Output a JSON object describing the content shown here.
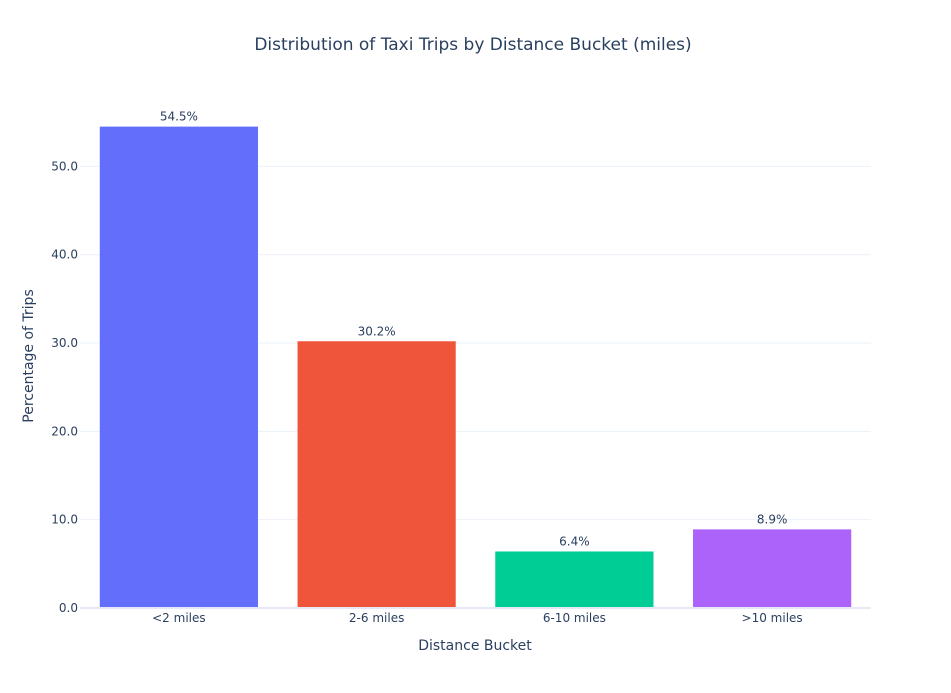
{
  "chart_data": {
    "type": "bar",
    "title": "Distribution of Taxi Trips by Distance Bucket (miles)",
    "xlabel": "Distance Bucket",
    "ylabel": "Percentage of Trips",
    "categories": [
      "<2 miles",
      "2-6 miles",
      "6-10 miles",
      ">10 miles"
    ],
    "values": [
      54.5,
      30.2,
      6.4,
      8.9
    ],
    "value_labels": [
      "54.5%",
      "30.2%",
      "6.4%",
      "8.9%"
    ],
    "bar_colors": [
      "#636efa",
      "#ef553b",
      "#00cc96",
      "#ab63fa"
    ],
    "ylim": [
      0,
      57.4
    ],
    "yticks": [
      0,
      10,
      20,
      30,
      40,
      50
    ],
    "ytick_labels": [
      "0.0",
      "10.0",
      "20.0",
      "30.0",
      "40.0",
      "50.0"
    ],
    "grid": true,
    "legend": false,
    "text_color": "#2a3f5f",
    "grid_color": "#ebf0f8",
    "axis_line_color": "#e5e9f6"
  }
}
